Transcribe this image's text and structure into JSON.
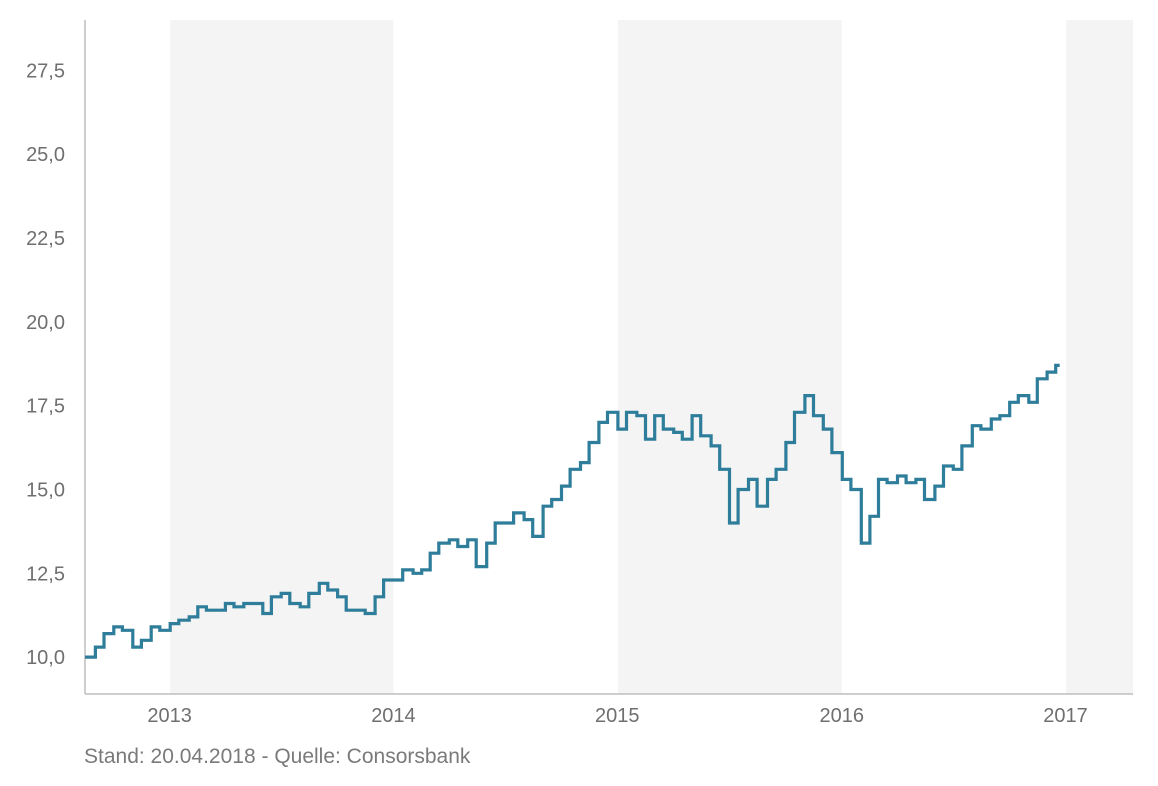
{
  "footer": {
    "source_note": "Stand: 20.04.2018 - Quelle: Consorsbank"
  },
  "colors": {
    "line": "#2e7d9a",
    "band": "#f4f4f4",
    "axis": "#bdbdbd",
    "text": "#6f6f6f"
  },
  "chart_data": {
    "type": "line",
    "title": "",
    "xlabel": "",
    "ylabel": "",
    "grid": false,
    "legend": "none",
    "line_style": "step",
    "shaded_years": [
      "2014",
      "2016",
      "2018"
    ],
    "xlim": [
      "2013-08-15",
      "2018-04-20"
    ],
    "ylim": [
      8.9,
      29.0
    ],
    "y_ticks": [
      {
        "value": 10.0,
        "label": "10,0"
      },
      {
        "value": 12.5,
        "label": "12,5"
      },
      {
        "value": 15.0,
        "label": "15,0"
      },
      {
        "value": 17.5,
        "label": "17,5"
      },
      {
        "value": 20.0,
        "label": "20,0"
      },
      {
        "value": 22.5,
        "label": "22,5"
      },
      {
        "value": 25.0,
        "label": "25,0"
      },
      {
        "value": 27.5,
        "label": "27,5"
      }
    ],
    "x_ticks": [
      {
        "value": "2013-12-31",
        "label": "2013"
      },
      {
        "value": "2014-12-31",
        "label": "2014"
      },
      {
        "value": "2015-12-31",
        "label": "2015"
      },
      {
        "value": "2016-12-31",
        "label": "2016"
      },
      {
        "value": "2017-12-31",
        "label": "2017"
      }
    ],
    "series": [
      {
        "color": "#2e7d9a",
        "points": [
          [
            "2013-08-15",
            10.0
          ],
          [
            "2013-09-01",
            10.3
          ],
          [
            "2013-09-15",
            10.7
          ],
          [
            "2013-10-01",
            10.9
          ],
          [
            "2013-10-15",
            10.8
          ],
          [
            "2013-11-01",
            10.3
          ],
          [
            "2013-11-15",
            10.5
          ],
          [
            "2013-12-01",
            10.9
          ],
          [
            "2013-12-15",
            10.8
          ],
          [
            "2014-01-01",
            11.0
          ],
          [
            "2014-01-15",
            11.1
          ],
          [
            "2014-02-01",
            11.2
          ],
          [
            "2014-02-15",
            11.5
          ],
          [
            "2014-03-01",
            11.4
          ],
          [
            "2014-03-15",
            11.4
          ],
          [
            "2014-04-01",
            11.6
          ],
          [
            "2014-04-15",
            11.5
          ],
          [
            "2014-05-01",
            11.6
          ],
          [
            "2014-05-15",
            11.6
          ],
          [
            "2014-06-01",
            11.3
          ],
          [
            "2014-06-15",
            11.8
          ],
          [
            "2014-07-01",
            11.9
          ],
          [
            "2014-07-15",
            11.6
          ],
          [
            "2014-08-01",
            11.5
          ],
          [
            "2014-08-15",
            11.9
          ],
          [
            "2014-09-01",
            12.2
          ],
          [
            "2014-09-15",
            12.0
          ],
          [
            "2014-10-01",
            11.8
          ],
          [
            "2014-10-15",
            11.4
          ],
          [
            "2014-11-01",
            11.4
          ],
          [
            "2014-11-15",
            11.3
          ],
          [
            "2014-12-01",
            11.8
          ],
          [
            "2014-12-15",
            12.3
          ],
          [
            "2015-01-01",
            12.3
          ],
          [
            "2015-01-15",
            12.6
          ],
          [
            "2015-02-01",
            12.5
          ],
          [
            "2015-02-15",
            12.6
          ],
          [
            "2015-03-01",
            13.1
          ],
          [
            "2015-03-15",
            13.4
          ],
          [
            "2015-04-01",
            13.5
          ],
          [
            "2015-04-15",
            13.3
          ],
          [
            "2015-05-01",
            13.5
          ],
          [
            "2015-05-15",
            12.7
          ],
          [
            "2015-06-01",
            13.4
          ],
          [
            "2015-06-15",
            14.0
          ],
          [
            "2015-07-01",
            14.0
          ],
          [
            "2015-07-15",
            14.3
          ],
          [
            "2015-08-01",
            14.1
          ],
          [
            "2015-08-15",
            13.6
          ],
          [
            "2015-09-01",
            14.5
          ],
          [
            "2015-09-15",
            14.7
          ],
          [
            "2015-10-01",
            15.1
          ],
          [
            "2015-10-15",
            15.6
          ],
          [
            "2015-11-01",
            15.8
          ],
          [
            "2015-11-15",
            16.4
          ],
          [
            "2015-12-01",
            17.0
          ],
          [
            "2015-12-15",
            17.3
          ],
          [
            "2016-01-01",
            16.8
          ],
          [
            "2016-01-15",
            17.3
          ],
          [
            "2016-02-01",
            17.2
          ],
          [
            "2016-02-15",
            16.5
          ],
          [
            "2016-03-01",
            17.2
          ],
          [
            "2016-03-15",
            16.8
          ],
          [
            "2016-04-01",
            16.7
          ],
          [
            "2016-04-15",
            16.5
          ],
          [
            "2016-05-01",
            17.2
          ],
          [
            "2016-05-15",
            16.6
          ],
          [
            "2016-06-01",
            16.3
          ],
          [
            "2016-06-15",
            15.6
          ],
          [
            "2016-07-01",
            14.0
          ],
          [
            "2016-07-15",
            15.0
          ],
          [
            "2016-08-01",
            15.3
          ],
          [
            "2016-08-15",
            14.5
          ],
          [
            "2016-09-01",
            15.3
          ],
          [
            "2016-09-15",
            15.6
          ],
          [
            "2016-10-01",
            16.4
          ],
          [
            "2016-10-15",
            17.3
          ],
          [
            "2016-11-01",
            17.8
          ],
          [
            "2016-11-15",
            17.2
          ],
          [
            "2016-12-01",
            16.8
          ],
          [
            "2016-12-15",
            16.1
          ],
          [
            "2017-01-01",
            15.3
          ],
          [
            "2017-01-15",
            15.0
          ],
          [
            "2017-02-01",
            13.4
          ],
          [
            "2017-02-15",
            14.2
          ],
          [
            "2017-03-01",
            15.3
          ],
          [
            "2017-03-15",
            15.2
          ],
          [
            "2017-04-01",
            15.4
          ],
          [
            "2017-04-15",
            15.2
          ],
          [
            "2017-05-01",
            15.3
          ],
          [
            "2017-05-15",
            14.7
          ],
          [
            "2017-06-01",
            15.1
          ],
          [
            "2017-06-15",
            15.7
          ],
          [
            "2017-07-01",
            15.6
          ],
          [
            "2017-07-15",
            16.3
          ],
          [
            "2017-08-01",
            16.9
          ],
          [
            "2017-08-15",
            16.8
          ],
          [
            "2017-09-01",
            17.1
          ],
          [
            "2017-09-15",
            17.2
          ],
          [
            "2017-10-01",
            17.6
          ],
          [
            "2017-10-15",
            17.8
          ],
          [
            "2017-11-01",
            17.6
          ],
          [
            "2017-11-15",
            18.3
          ],
          [
            "2017-12-01",
            18.5
          ],
          [
            "2017-12-15",
            18.7
          ]
        ]
      }
    ]
  }
}
